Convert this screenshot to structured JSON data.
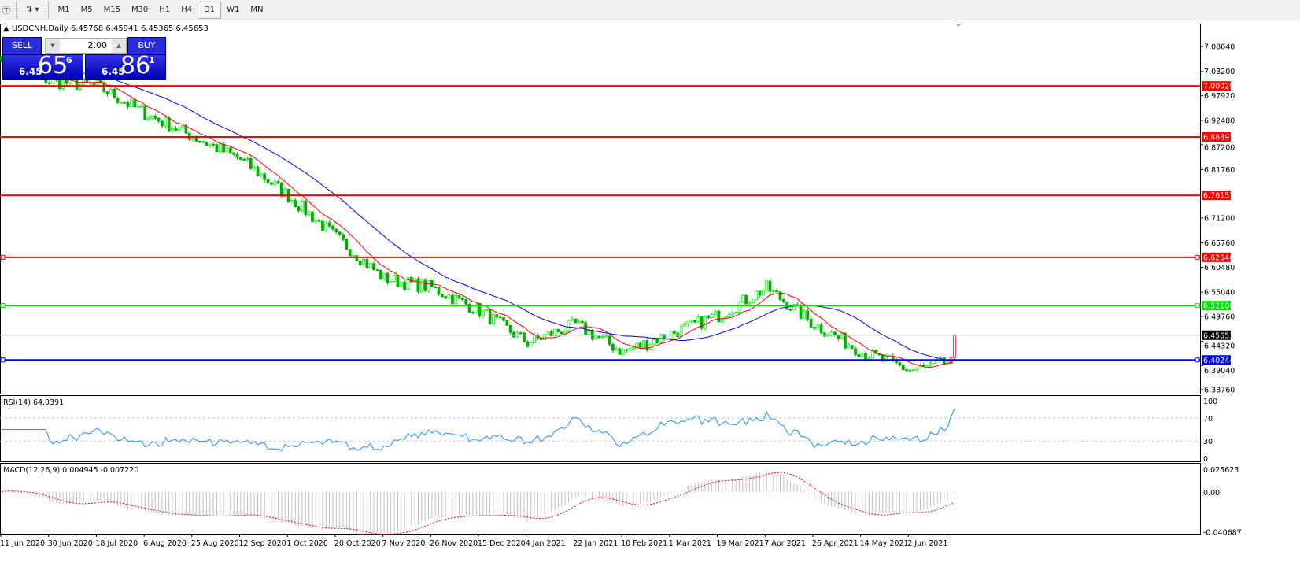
{
  "toolbar": {
    "timeframes": [
      "M1",
      "M5",
      "M15",
      "M30",
      "H1",
      "H4",
      "D1",
      "W1",
      "MN"
    ],
    "active": "D1"
  },
  "chart": {
    "symbol_line": "USDCNH,Daily  6.45768 6.45941 6.45365 6.45653",
    "trade_panel": {
      "sell_label": "SELL",
      "buy_label": "BUY",
      "lot": "2.00",
      "sell_small": "6.45",
      "sell_big": "65",
      "sell_sup": "6",
      "buy_small": "6.45",
      "buy_big": "86",
      "buy_sup": "1"
    },
    "colors": {
      "bull": "#00ff00",
      "bear": "#00b000",
      "fast_ma": "#ff0000",
      "slow_ma": "#0000ff",
      "rsi": "#1e90ff",
      "macd_hist": "#c0c0c0",
      "macd_signal": "#ff0000"
    },
    "price_axis": [
      "7.08640",
      "7.03200",
      "6.97920",
      "6.92480",
      "6.87200",
      "6.81760",
      "6.71200",
      "6.65760",
      "6.60480",
      "6.55040",
      "6.49760",
      "6.44320",
      "6.39040",
      "6.33760"
    ],
    "hlines": [
      {
        "price": 7.00029,
        "label": "7.00029",
        "color": "#ff0000"
      },
      {
        "price": 6.88897,
        "label": "6.88897",
        "color": "#ff0000"
      },
      {
        "price": 6.76157,
        "label": "6.76157",
        "color": "#ff0000"
      },
      {
        "price": 6.62646,
        "label": "6.62646",
        "color": "#ff0000"
      },
      {
        "price": 6.52108,
        "label": "6.52108",
        "color": "#00e000"
      },
      {
        "price": 6.45653,
        "label": "6.45653",
        "color": "#c0c0c0",
        "tag": "#000000"
      },
      {
        "price": 6.40244,
        "label": "6.40244",
        "color": "#0000ff"
      }
    ],
    "rsi": {
      "label": "RSI(14) 64.0391",
      "axis": [
        "100",
        "70",
        "30",
        "0"
      ],
      "levels": [
        70,
        30
      ]
    },
    "macd": {
      "label": "MACD(12,26,9) 0.004945 -0.007220",
      "axis": [
        "0.025623",
        "0.00",
        "-0.040687"
      ]
    },
    "date_axis": [
      "11 Jun 2020",
      "30 Jun 2020",
      "18 Jul 2020",
      "6 Aug 2020",
      "25 Aug 2020",
      "12 Sep 2020",
      "1 Oct 2020",
      "20 Oct 2020",
      "7 Nov 2020",
      "26 Nov 2020",
      "15 Dec 2020",
      "4 Jan 2021",
      "22 Jan 2021",
      "10 Feb 2021",
      "1 Mar 2021",
      "19 Mar 2021",
      "7 Apr 2021",
      "26 Apr 2021",
      "14 May 2021",
      "2 Jun 2021"
    ]
  },
  "chart_data": {
    "type": "candlestick",
    "symbol": "USDCNH",
    "timeframe": "Daily",
    "ylim": [
      6.3376,
      7.0864
    ],
    "approx_closes": [
      [
        "11 Jun 2020",
        7.07
      ],
      [
        "30 Jun 2020",
        7.01
      ],
      [
        "18 Jul 2020",
        7.0
      ],
      [
        "6 Aug 2020",
        6.94
      ],
      [
        "25 Aug 2020",
        6.89
      ],
      [
        "12 Sep 2020",
        6.84
      ],
      [
        "1 Oct 2020",
        6.76
      ],
      [
        "20 Oct 2020",
        6.67
      ],
      [
        "7 Nov 2020",
        6.58
      ],
      [
        "26 Nov 2020",
        6.56
      ],
      [
        "15 Dec 2020",
        6.51
      ],
      [
        "4 Jan 2021",
        6.44
      ],
      [
        "22 Jan 2021",
        6.48
      ],
      [
        "10 Feb 2021",
        6.42
      ],
      [
        "1 Mar 2021",
        6.46
      ],
      [
        "19 Mar 2021",
        6.5
      ],
      [
        "7 Apr 2021",
        6.56
      ],
      [
        "26 Apr 2021",
        6.48
      ],
      [
        "14 May 2021",
        6.42
      ],
      [
        "2 Jun 2021",
        6.38
      ],
      [
        "last",
        6.45653
      ]
    ],
    "last_bar": {
      "open": 6.45768,
      "high": 6.45941,
      "low": 6.45365,
      "close": 6.45653
    }
  }
}
